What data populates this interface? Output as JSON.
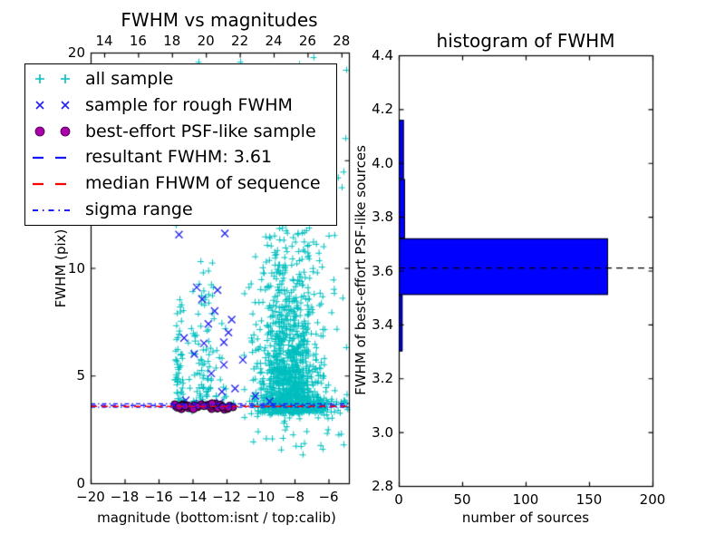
{
  "chart_data": [
    {
      "type": "scatter",
      "title": "FWHM vs magnitudes",
      "xlabel": "magnitude (bottom:isnt / top:calib)",
      "ylabel": "FWHM (pix)",
      "xlim": [
        -20,
        -4.8
      ],
      "ylim": [
        0,
        20
      ],
      "xticks": {
        "values": [
          -20,
          -18,
          -16,
          -14,
          -12,
          -10,
          -8,
          -6
        ],
        "labels": [
          "−20",
          "−18",
          "−16",
          "−14",
          "−12",
          "−10",
          "−8",
          "−6"
        ]
      },
      "yticks": {
        "values": [
          0,
          5,
          10,
          15,
          20
        ],
        "labels": [
          "0",
          "5",
          "10",
          "15",
          "20"
        ]
      },
      "top_xticks": {
        "values": [
          14,
          16,
          18,
          20,
          22,
          24,
          26,
          28
        ],
        "labels": [
          "14",
          "16",
          "18",
          "20",
          "22",
          "24",
          "26",
          "28"
        ]
      },
      "legend": [
        {
          "label": "all sample",
          "marker": "plus",
          "color": "#00BFBF"
        },
        {
          "label": "sample for rough FWHM",
          "marker": "cross",
          "color": "#2020EE"
        },
        {
          "label": "best-effort PSF-like sample",
          "marker": "circle",
          "color": "#AA00AA"
        },
        {
          "label": "resultant FWHM: 3.61",
          "marker": "dashed-line",
          "color": "#1515FF"
        },
        {
          "label": "median FHWM of sequence",
          "marker": "dashed-line",
          "color": "#FF0000"
        },
        {
          "label": "sigma range",
          "marker": "dashdot-line",
          "color": "#1515FF"
        }
      ],
      "hlines": {
        "resultant_fwhm": 3.61,
        "median_fwhm": 3.6,
        "sigma_range": [
          3.53,
          3.69
        ]
      },
      "series": {
        "all_sample": {
          "marker": "plus",
          "color": "#00BFBF",
          "clusters": [
            {
              "n": 60,
              "x": [
                "uniform",
                -15.05,
                -14.55
              ],
              "y": [
                "expdown",
                3.45,
                12.5,
                2.2
              ]
            },
            {
              "n": 5,
              "x": [
                "uniform",
                -15.1,
                -14.5
              ],
              "y": [
                "uniform",
                13.0,
                19.9
              ]
            },
            {
              "n": 100,
              "x": [
                "gauss",
                -13.25,
                0.55,
                -14.35,
                -12.0
              ],
              "y": [
                "expdown",
                3.55,
                13.5,
                2.8
              ]
            },
            {
              "n": 6,
              "x": [
                "uniform",
                -13.9,
                -12.1
              ],
              "y": [
                "uniform",
                14.0,
                19.6
              ]
            },
            {
              "n": 1050,
              "x": [
                "gauss",
                -8.25,
                0.95,
                -10.7,
                -4.95
              ],
              "y": [
                "expdown",
                3.25,
                16.0,
                3.0
              ]
            },
            {
              "n": 230,
              "x": [
                "gauss",
                -8.0,
                1.4,
                -10.8,
                -4.85
              ],
              "y": [
                "gauss",
                3.65,
                0.22,
                3.0,
                4.6
              ]
            },
            {
              "n": 90,
              "x": [
                "uniform",
                -11.3,
                -4.85
              ],
              "y": [
                "uniform",
                2.3,
                19.9
              ]
            },
            {
              "n": 24,
              "x": [
                "uniform",
                -10.6,
                -5.1
              ],
              "y": [
                "uniform",
                1.3,
                3.1
              ]
            },
            {
              "n": 25,
              "x": [
                "uniform",
                -15.0,
                -11.6
              ],
              "y": [
                "gauss",
                3.6,
                0.12,
                3.3,
                3.95
              ]
            }
          ]
        },
        "rough_fwhm_sample": {
          "marker": "cross",
          "color": "#2020EE",
          "points": [
            [
              -12.1,
              11.6
            ],
            [
              -14.8,
              11.55
            ],
            [
              -13.76,
              9.1
            ],
            [
              -13.44,
              8.55
            ],
            [
              -12.7,
              8.0
            ],
            [
              -13.07,
              7.4
            ],
            [
              -14.5,
              6.75
            ],
            [
              -13.33,
              6.5
            ],
            [
              -12.16,
              6.55
            ],
            [
              -11.89,
              7.0
            ],
            [
              -12.16,
              5.5
            ],
            [
              -11.04,
              5.73
            ],
            [
              -12.53,
              8.97
            ],
            [
              -12.9,
              5.1
            ],
            [
              -13.9,
              6.0
            ],
            [
              -11.7,
              7.6
            ],
            [
              -12.27,
              4.25
            ],
            [
              -14.4,
              3.85
            ],
            [
              -13.6,
              3.7
            ],
            [
              -12.4,
              3.75
            ],
            [
              -10.3,
              4.05
            ],
            [
              -9.47,
              3.8
            ],
            [
              -11.5,
              4.4
            ],
            [
              -13.0,
              3.6
            ]
          ]
        },
        "psf_like_sample": {
          "marker": "circle",
          "fill": "#AA00AA",
          "edge": "#000000",
          "cluster": {
            "n": 48,
            "x_min": -15.05,
            "x_max": -11.55,
            "y_mean": 3.56,
            "y_sd": 0.07
          }
        }
      }
    },
    {
      "type": "bar-horizontal",
      "title": "histogram of FWHM",
      "xlabel": "number of sources",
      "ylabel": "FWHM of best-effort PSF-like sources",
      "xlim": [
        0,
        200
      ],
      "ylim": [
        2.8,
        4.4
      ],
      "xticks": {
        "values": [
          0,
          50,
          100,
          150,
          200
        ],
        "labels": [
          "0",
          "50",
          "100",
          "150",
          "200"
        ]
      },
      "yticks": {
        "values": [
          2.8,
          3.0,
          3.2,
          3.4,
          3.6,
          3.8,
          4.0,
          4.2,
          4.4
        ],
        "labels": [
          "2.8",
          "3.0",
          "3.2",
          "3.4",
          "3.6",
          "3.8",
          "4.0",
          "4.2",
          "4.4"
        ]
      },
      "bins": [
        {
          "lo": 3.3,
          "hi": 3.51,
          "count": 3
        },
        {
          "lo": 3.51,
          "hi": 3.72,
          "count": 165
        },
        {
          "lo": 3.72,
          "hi": 3.94,
          "count": 5
        },
        {
          "lo": 3.94,
          "hi": 4.16,
          "count": 4
        }
      ],
      "bar_color": "#0000FF",
      "bar_edge": "#000000",
      "dashed_line_y": 3.61
    }
  ],
  "colors": {
    "cyan": "#00BFBF",
    "blue": "#2020EE",
    "line_blue": "#1515FF",
    "magenta": "#AA00AA",
    "red": "#FF0000",
    "black": "#000000",
    "bar_fill": "#0000FF",
    "background": "#FFFFFF"
  }
}
